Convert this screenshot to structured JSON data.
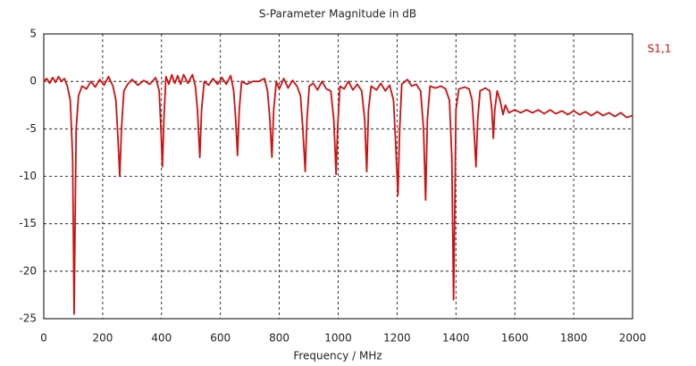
{
  "chart_data": {
    "type": "line",
    "title": "S-Parameter Magnitude in dB",
    "x_label": "Frequency / MHz",
    "xlim": [
      0,
      2000
    ],
    "xticks": [
      0,
      200,
      400,
      600,
      800,
      1000,
      1200,
      1400,
      1600,
      1800,
      2000
    ],
    "ylim": [
      -25,
      5
    ],
    "yticks": [
      5,
      0,
      -5,
      -10,
      -15,
      -20,
      -25
    ],
    "grid": true,
    "legend": "right",
    "x": [
      0,
      10,
      20,
      30,
      40,
      50,
      60,
      70,
      80,
      90,
      98,
      103,
      106,
      110,
      118,
      130,
      145,
      160,
      175,
      190,
      205,
      220,
      235,
      245,
      252,
      258,
      264,
      272,
      285,
      300,
      320,
      340,
      360,
      380,
      392,
      398,
      403,
      408,
      415,
      425,
      435,
      445,
      455,
      465,
      475,
      490,
      505,
      515,
      522,
      530,
      536,
      545,
      560,
      575,
      590,
      605,
      620,
      635,
      645,
      652,
      658,
      664,
      672,
      690,
      710,
      730,
      750,
      760,
      768,
      775,
      781,
      790,
      800,
      815,
      830,
      845,
      860,
      872,
      880,
      888,
      894,
      902,
      915,
      930,
      945,
      960,
      975,
      985,
      993,
      998,
      1006,
      1020,
      1035,
      1050,
      1065,
      1080,
      1090,
      1097,
      1103,
      1112,
      1130,
      1145,
      1160,
      1175,
      1188,
      1196,
      1203,
      1209,
      1216,
      1235,
      1250,
      1265,
      1280,
      1290,
      1297,
      1303,
      1312,
      1330,
      1350,
      1365,
      1378,
      1386,
      1392,
      1396,
      1400,
      1410,
      1430,
      1445,
      1455,
      1463,
      1468,
      1474,
      1482,
      1500,
      1515,
      1522,
      1527,
      1532,
      1540,
      1550,
      1560,
      1568,
      1580,
      1600,
      1620,
      1640,
      1660,
      1680,
      1700,
      1720,
      1740,
      1760,
      1780,
      1800,
      1820,
      1840,
      1860,
      1880,
      1900,
      1920,
      1940,
      1960,
      1980,
      2000
    ],
    "series": [
      {
        "name": "S1,1",
        "color": "#cc1111",
        "values": [
          0,
          0.3,
          -0.2,
          0.4,
          -0.1,
          0.5,
          0,
          0.3,
          -0.5,
          -2,
          -8,
          -24.5,
          -16,
          -5,
          -1.5,
          -0.5,
          -0.8,
          0,
          -0.6,
          0.2,
          -0.4,
          0.5,
          -0.5,
          -2,
          -6,
          -10,
          -5,
          -1,
          -0.3,
          0.2,
          -0.4,
          0.1,
          -0.3,
          0.4,
          -1,
          -5,
          -9,
          -4,
          0.5,
          -0.3,
          0.7,
          -0.2,
          0.6,
          -0.3,
          0.7,
          -0.2,
          0.7,
          -0.5,
          -3,
          -8,
          -3,
          0,
          -0.4,
          0.3,
          -0.3,
          0.4,
          -0.3,
          0.6,
          -1,
          -4,
          -7.8,
          -3,
          0,
          -0.3,
          0,
          0,
          0.3,
          -1,
          -4,
          -8,
          -3,
          0,
          -0.8,
          0.3,
          -0.7,
          0.1,
          -0.5,
          -1.5,
          -5,
          -9.5,
          -4,
          -0.5,
          -0.2,
          -0.9,
          0,
          -0.8,
          -1,
          -4,
          -9.8,
          -5,
          -0.5,
          -0.8,
          0,
          -0.9,
          -0.3,
          -1,
          -4,
          -9.5,
          -3,
          -0.5,
          -0.9,
          -0.2,
          -1,
          -0.4,
          -2,
          -7,
          -12,
          -5,
          -0.3,
          0.2,
          -0.5,
          -0.3,
          -1,
          -5,
          -12.5,
          -4,
          -0.5,
          -0.7,
          -0.5,
          -0.8,
          -2,
          -8,
          -23,
          -14,
          -3,
          -0.8,
          -0.6,
          -0.8,
          -2,
          -6,
          -9,
          -4,
          -1,
          -0.7,
          -1,
          -3,
          -6,
          -3,
          -1,
          -2,
          -3.5,
          -2.5,
          -3.3,
          -3,
          -3.3,
          -3,
          -3.3,
          -3,
          -3.4,
          -3,
          -3.4,
          -3.1,
          -3.5,
          -3.1,
          -3.5,
          -3.2,
          -3.6,
          -3.2,
          -3.6,
          -3.3,
          -3.7,
          -3.3,
          -3.8,
          -3.6
        ]
      }
    ]
  }
}
